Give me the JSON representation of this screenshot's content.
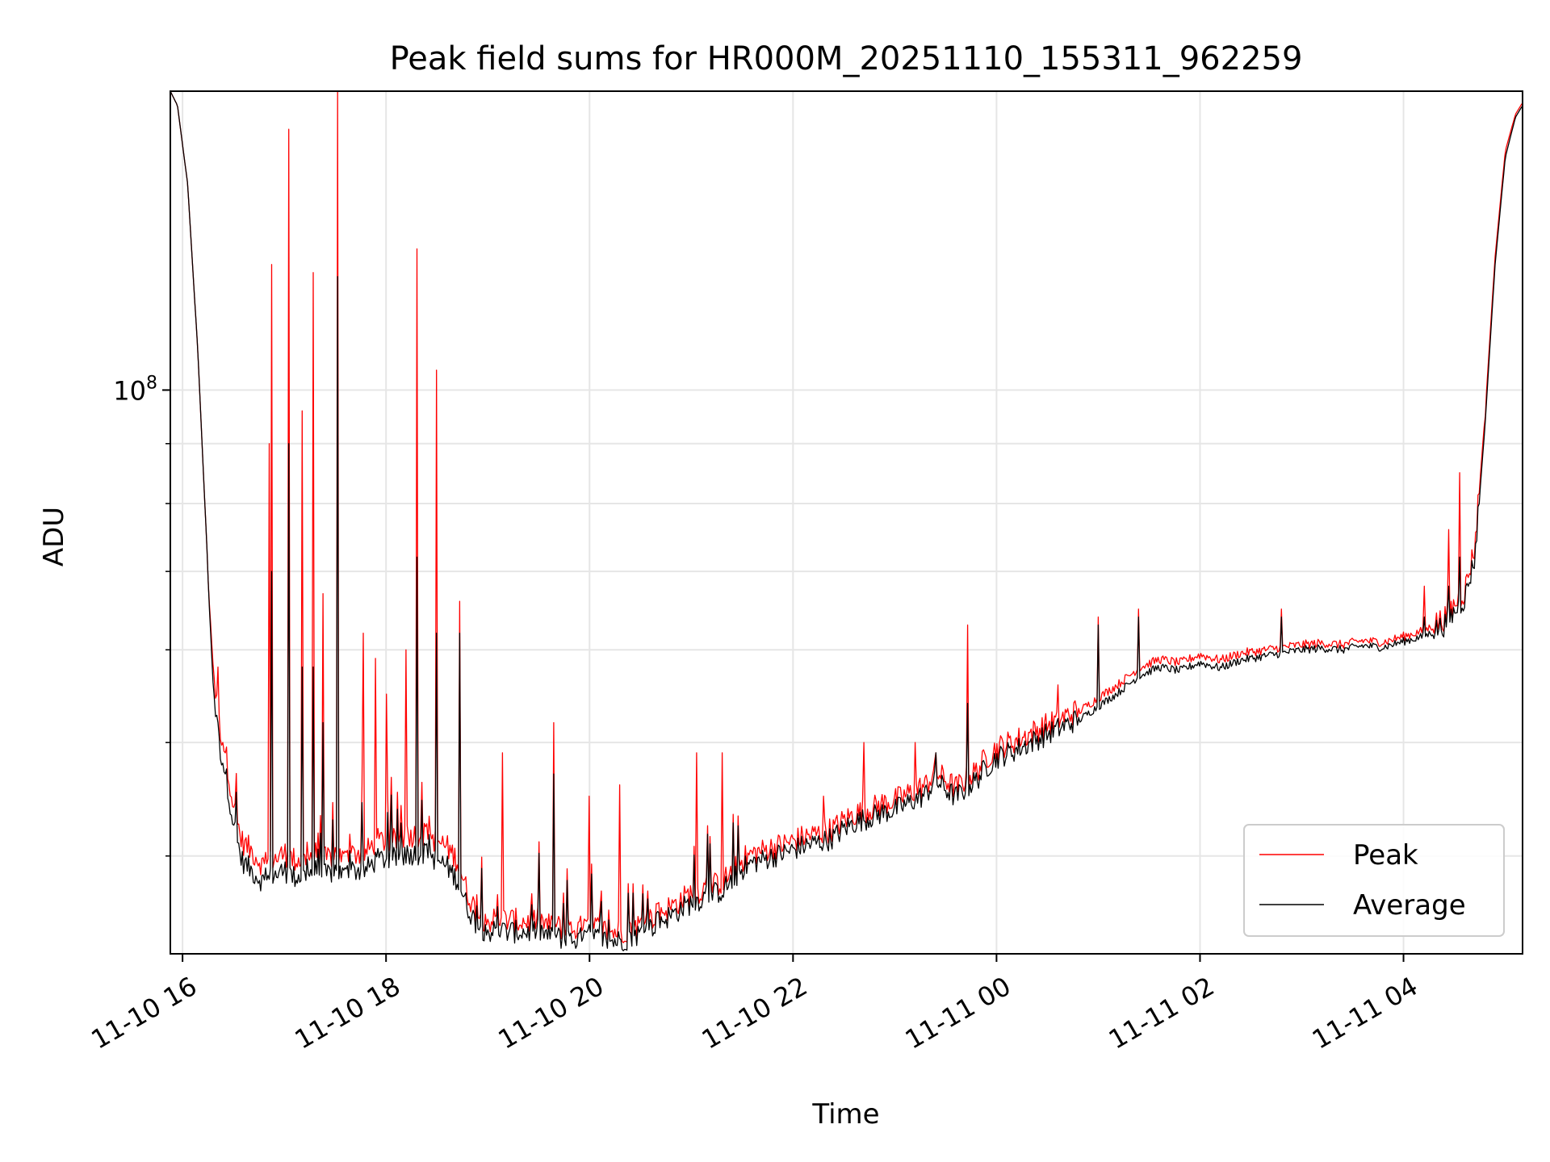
{
  "chart_data": {
    "type": "line",
    "title": "Peak field sums for HR000M_20251110_155311_962259",
    "xlabel": "Time",
    "ylabel": "ADU",
    "yscale": "log",
    "grid": true,
    "legend_position": "lower-right",
    "x_unit": "hours since 11-10 00:00",
    "xlim": [
      15.88,
      29.17
    ],
    "ylim": [
      33000000,
      180000000
    ],
    "x_ticks": [
      {
        "value": 16,
        "label": "11-10 16"
      },
      {
        "value": 18,
        "label": "11-10 18"
      },
      {
        "value": 20,
        "label": "11-10 20"
      },
      {
        "value": 22,
        "label": "11-10 22"
      },
      {
        "value": 24,
        "label": "11-11 00"
      },
      {
        "value": 26,
        "label": "11-11 02"
      },
      {
        "value": 28,
        "label": "11-11 04"
      }
    ],
    "y_major_ticks": [
      {
        "value": 100000000,
        "base": "10",
        "exp": "8"
      }
    ],
    "y_minor_ticks": [
      40000000,
      50000000,
      60000000,
      70000000,
      80000000,
      90000000,
      200000000
    ],
    "series": [
      {
        "name": "Peak",
        "color": "#ff0000",
        "x": [
          15.88,
          15.95,
          16.05,
          16.15,
          16.25,
          16.3,
          16.35,
          16.42,
          16.5,
          16.58,
          16.7,
          16.8,
          16.9,
          17.0,
          17.1,
          17.2,
          17.3,
          17.4,
          17.5,
          17.6,
          17.7,
          17.8,
          17.9,
          18.0,
          18.1,
          18.2,
          18.3,
          18.4,
          18.5,
          18.6,
          18.7,
          18.8,
          18.9,
          19.0,
          19.1,
          19.2,
          19.3,
          19.4,
          19.5,
          19.6,
          19.7,
          19.8,
          19.9,
          20.0,
          20.1,
          20.2,
          20.3,
          20.4,
          20.5,
          20.6,
          20.7,
          20.8,
          20.9,
          21.0,
          21.1,
          21.2,
          21.3,
          21.4,
          21.5,
          21.6,
          21.7,
          21.8,
          21.9,
          22.0,
          22.1,
          22.2,
          22.3,
          22.4,
          22.5,
          22.6,
          22.7,
          22.8,
          22.9,
          23.0,
          23.1,
          23.2,
          23.3,
          23.4,
          23.5,
          23.6,
          23.7,
          23.8,
          23.9,
          24.0,
          24.2,
          24.4,
          24.6,
          24.8,
          25.0,
          25.2,
          25.4,
          25.6,
          25.8,
          26.0,
          26.2,
          26.4,
          26.6,
          26.8,
          27.0,
          27.2,
          27.4,
          27.6,
          27.8,
          28.0,
          28.2,
          28.4,
          28.6,
          28.7,
          28.8,
          28.9,
          29.0,
          29.1,
          29.17
        ],
        "y": [
          180000000,
          175000000,
          150000000,
          108000000,
          70000000,
          58000000,
          52000000,
          49000000,
          44000000,
          41000000,
          40000000,
          39000000,
          39500000,
          40000000,
          39500000,
          39500000,
          40000000,
          39500000,
          40000000,
          39500000,
          40000000,
          40000000,
          41000000,
          41000000,
          41000000,
          41500000,
          41500000,
          41500000,
          41000000,
          40500000,
          39500000,
          37000000,
          35500000,
          35000000,
          35200000,
          35100000,
          35000000,
          35000000,
          35100000,
          34700000,
          34600000,
          34500000,
          34500000,
          34800000,
          34500000,
          34300000,
          34300000,
          34500000,
          34800000,
          35200000,
          35700000,
          36000000,
          36500000,
          37000000,
          37200000,
          37500000,
          37800000,
          38500000,
          39500000,
          40000000,
          40200000,
          40500000,
          40700000,
          41000000,
          41300000,
          41500000,
          41700000,
          42000000,
          42700000,
          43200000,
          43500000,
          43800000,
          44200000,
          44400000,
          44800000,
          45300000,
          45700000,
          47000000,
          46200000,
          45500000,
          46300000,
          47000000,
          48300000,
          49200000,
          50000000,
          51000000,
          52000000,
          53000000,
          54500000,
          56000000,
          57800000,
          58800000,
          58400000,
          59300000,
          58700000,
          59500000,
          59800000,
          60200000,
          60500000,
          60700000,
          60500000,
          61000000,
          60800000,
          61500000,
          62200000,
          63500000,
          67000000,
          73000000,
          95000000,
          130000000,
          160000000,
          172000000,
          176000000
        ],
        "spikes": [
          [
            16.35,
            58000000
          ],
          [
            16.85,
            90000000
          ],
          [
            16.88,
            128000000
          ],
          [
            17.05,
            167000000
          ],
          [
            17.18,
            96000000
          ],
          [
            17.28,
            126000000
          ],
          [
            17.38,
            67000000
          ],
          [
            17.52,
            180000000
          ],
          [
            17.78,
            62000000
          ],
          [
            17.9,
            59000000
          ],
          [
            18.0,
            55000000
          ],
          [
            18.2,
            60000000
          ],
          [
            18.3,
            132000000
          ],
          [
            18.5,
            104000000
          ],
          [
            18.72,
            66000000
          ],
          [
            19.15,
            49000000
          ],
          [
            19.65,
            52000000
          ],
          [
            20.0,
            45000000
          ],
          [
            20.3,
            46000000
          ],
          [
            21.05,
            49000000
          ],
          [
            21.3,
            49000000
          ],
          [
            22.3,
            45000000
          ],
          [
            22.7,
            50000000
          ],
          [
            23.2,
            50000000
          ],
          [
            23.4,
            49000000
          ],
          [
            23.72,
            63000000
          ],
          [
            24.6,
            56000000
          ],
          [
            25.0,
            64000000
          ],
          [
            25.4,
            65000000
          ],
          [
            26.8,
            65000000
          ],
          [
            28.2,
            68000000
          ],
          [
            28.45,
            76000000
          ],
          [
            28.55,
            85000000
          ],
          [
            28.8,
            95000000
          ]
        ]
      },
      {
        "name": "Average",
        "color": "#000000",
        "x": [
          15.88,
          15.95,
          16.05,
          16.15,
          16.25,
          16.3,
          16.35,
          16.42,
          16.5,
          16.58,
          16.7,
          16.8,
          16.9,
          17.0,
          17.1,
          17.2,
          17.3,
          17.4,
          17.5,
          17.6,
          17.7,
          17.8,
          17.9,
          18.0,
          18.1,
          18.2,
          18.3,
          18.4,
          18.5,
          18.6,
          18.7,
          18.8,
          18.9,
          19.0,
          19.1,
          19.2,
          19.3,
          19.4,
          19.5,
          19.6,
          19.7,
          19.8,
          19.9,
          20.0,
          20.1,
          20.2,
          20.3,
          20.4,
          20.5,
          20.6,
          20.7,
          20.8,
          20.9,
          21.0,
          21.1,
          21.2,
          21.3,
          21.4,
          21.5,
          21.6,
          21.7,
          21.8,
          21.9,
          22.0,
          22.1,
          22.2,
          22.3,
          22.4,
          22.5,
          22.6,
          22.7,
          22.8,
          22.9,
          23.0,
          23.1,
          23.2,
          23.3,
          23.4,
          23.5,
          23.6,
          23.7,
          23.8,
          23.9,
          24.0,
          24.2,
          24.4,
          24.6,
          24.8,
          25.0,
          25.2,
          25.4,
          25.6,
          25.8,
          26.0,
          26.2,
          26.4,
          26.6,
          26.8,
          27.0,
          27.2,
          27.4,
          27.6,
          27.8,
          28.0,
          28.2,
          28.4,
          28.6,
          28.7,
          28.8,
          28.9,
          29.0,
          29.1,
          29.17
        ],
        "y": [
          180000000,
          175000000,
          150000000,
          108000000,
          70000000,
          56000000,
          50000000,
          47000000,
          42500000,
          39500000,
          38500000,
          37800000,
          38300000,
          38700000,
          38200000,
          38300000,
          38700000,
          38300000,
          38700000,
          38300000,
          38700000,
          38700000,
          39500000,
          39600000,
          39600000,
          40000000,
          40000000,
          40000000,
          39500000,
          39000000,
          38000000,
          36000000,
          34700000,
          34300000,
          34400000,
          34300000,
          34300000,
          34300000,
          34400000,
          34000000,
          33900000,
          33800000,
          33800000,
          34100000,
          33800000,
          33700000,
          33700000,
          33900000,
          34200000,
          34600000,
          35100000,
          35400000,
          35900000,
          36300000,
          36600000,
          36900000,
          37200000,
          37900000,
          38800000,
          39300000,
          39500000,
          39800000,
          40000000,
          40300000,
          40600000,
          40800000,
          41000000,
          41300000,
          42000000,
          42500000,
          42800000,
          43100000,
          43400000,
          43600000,
          44000000,
          44500000,
          44900000,
          46200000,
          45400000,
          44700000,
          45500000,
          46200000,
          47400000,
          48300000,
          49100000,
          50100000,
          51100000,
          52100000,
          53600000,
          55100000,
          56900000,
          57900000,
          57500000,
          58400000,
          57800000,
          58700000,
          59100000,
          59500000,
          59900000,
          60100000,
          59900000,
          60400000,
          60200000,
          60900000,
          61500000,
          62700000,
          66000000,
          71500000,
          93000000,
          128000000,
          158000000,
          171000000,
          175000000
        ],
        "spikes": [
          [
            16.35,
            52000000
          ],
          [
            16.88,
            70000000
          ],
          [
            17.05,
            90000000
          ],
          [
            17.18,
            58000000
          ],
          [
            17.28,
            58000000
          ],
          [
            17.38,
            52000000
          ],
          [
            17.52,
            125000000
          ],
          [
            18.3,
            72000000
          ],
          [
            18.5,
            62000000
          ],
          [
            18.72,
            62000000
          ],
          [
            19.65,
            47000000
          ],
          [
            23.4,
            49000000
          ],
          [
            23.72,
            54000000
          ],
          [
            25.0,
            63000000
          ],
          [
            25.4,
            64000000
          ],
          [
            26.8,
            64000000
          ],
          [
            28.2,
            64000000
          ],
          [
            28.45,
            68000000
          ],
          [
            28.55,
            72000000
          ]
        ]
      }
    ]
  }
}
